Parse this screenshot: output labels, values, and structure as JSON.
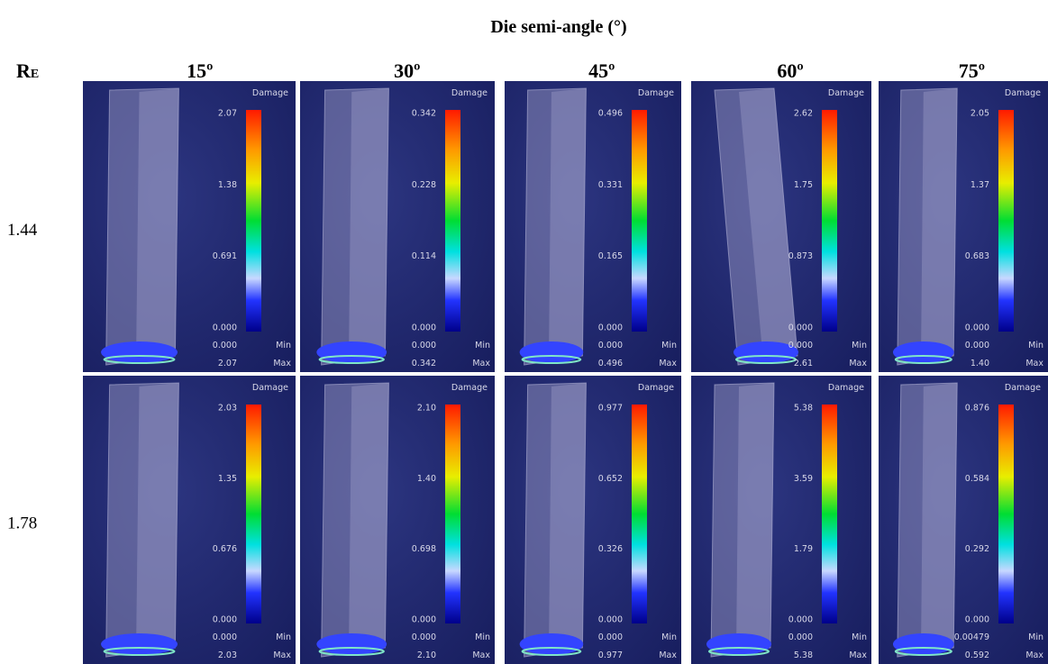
{
  "header": {
    "title": "Die semi-angle (°)",
    "row_label": {
      "main": "R",
      "sub": "E"
    }
  },
  "columns": [
    "15º",
    "30º",
    "45º",
    "60º",
    "75º"
  ],
  "rows": [
    {
      "label": "1.44",
      "panels": [
        {
          "legend_title": "Damage",
          "ticks": [
            "2.07",
            "1.38",
            "0.691",
            "0.000"
          ],
          "min": "0.000",
          "min_label": "Min",
          "max": "2.07",
          "max_label": "Max"
        },
        {
          "legend_title": "Damage",
          "ticks": [
            "0.342",
            "0.228",
            "0.114",
            "0.000"
          ],
          "min": "0.000",
          "min_label": "Min",
          "max": "0.342",
          "max_label": "Max"
        },
        {
          "legend_title": "Damage",
          "ticks": [
            "0.496",
            "0.331",
            "0.165",
            "0.000"
          ],
          "min": "0.000",
          "min_label": "Min",
          "max": "0.496",
          "max_label": "Max"
        },
        {
          "legend_title": "Damage",
          "ticks": [
            "2.62",
            "1.75",
            "0.873",
            "0.000"
          ],
          "min": "0.000",
          "min_label": "Min",
          "max": "2.61",
          "max_label": "Max"
        },
        {
          "legend_title": "Damage",
          "ticks": [
            "2.05",
            "1.37",
            "0.683",
            "0.000"
          ],
          "min": "0.000",
          "min_label": "Min",
          "max": "1.40",
          "max_label": "Max"
        }
      ]
    },
    {
      "label": "1.78",
      "panels": [
        {
          "legend_title": "Damage",
          "ticks": [
            "2.03",
            "1.35",
            "0.676",
            "0.000"
          ],
          "min": "0.000",
          "min_label": "Min",
          "max": "2.03",
          "max_label": "Max"
        },
        {
          "legend_title": "Damage",
          "ticks": [
            "2.10",
            "1.40",
            "0.698",
            "0.000"
          ],
          "min": "0.000",
          "min_label": "Min",
          "max": "2.10",
          "max_label": "Max"
        },
        {
          "legend_title": "Damage",
          "ticks": [
            "0.977",
            "0.652",
            "0.326",
            "0.000"
          ],
          "min": "0.000",
          "min_label": "Min",
          "max": "0.977",
          "max_label": "Max"
        },
        {
          "legend_title": "Damage",
          "ticks": [
            "5.38",
            "3.59",
            "1.79",
            "0.000"
          ],
          "min": "0.000",
          "min_label": "Min",
          "max": "5.38",
          "max_label": "Max"
        },
        {
          "legend_title": "Damage",
          "ticks": [
            "0.876",
            "0.584",
            "0.292",
            "0.000"
          ],
          "min": "0.00479",
          "min_label": "Min",
          "max": "0.592",
          "max_label": "Max"
        }
      ]
    }
  ]
}
